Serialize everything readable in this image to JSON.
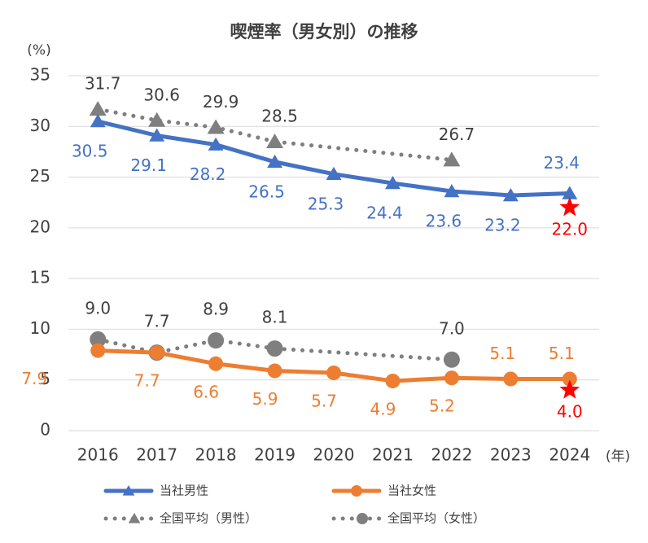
{
  "chart_data": {
    "type": "line",
    "title": "喫煙率（男女別）の推移",
    "y_unit": "(%)",
    "x_unit": "(年)",
    "categories": [
      "2016",
      "2017",
      "2018",
      "2019",
      "2020",
      "2021",
      "2022",
      "2023",
      "2024"
    ],
    "ylim": [
      0,
      35
    ],
    "yticks": [
      0,
      5,
      10,
      15,
      20,
      25,
      30,
      35
    ],
    "grid": true,
    "series": [
      {
        "name": "当社男性",
        "color": "#4472c4",
        "marker": "triangle",
        "line_style": "solid",
        "values": [
          30.5,
          29.1,
          28.2,
          26.5,
          25.3,
          24.4,
          23.6,
          23.2,
          23.4
        ]
      },
      {
        "name": "当社女性",
        "color": "#ed7d31",
        "marker": "circle",
        "line_style": "solid",
        "values": [
          7.9,
          7.7,
          6.6,
          5.9,
          5.7,
          4.9,
          5.2,
          5.1,
          5.1
        ]
      },
      {
        "name": "全国平均（男性）",
        "color": "#7f7f7f",
        "marker": "triangle",
        "line_style": "dotted",
        "connect_gaps": true,
        "values": [
          31.7,
          30.6,
          29.9,
          28.5,
          null,
          null,
          26.7,
          null,
          null
        ]
      },
      {
        "name": "全国平均（女性）",
        "color": "#7f7f7f",
        "marker": "circle",
        "line_style": "dotted",
        "connect_gaps": true,
        "values": [
          9,
          7.7,
          8.9,
          8.1,
          null,
          null,
          7,
          null,
          null
        ],
        "value_labels": [
          "9.0",
          "7.7",
          "8.9",
          "8.1",
          null,
          null,
          "7.0",
          null,
          null
        ]
      }
    ],
    "targets": [
      {
        "color": "#ff0000",
        "marker": "star",
        "category": "2024",
        "value": 22,
        "value_label": "22.0"
      },
      {
        "color": "#ff0000",
        "marker": "star",
        "category": "2024",
        "value": 4,
        "value_label": "4.0"
      }
    ]
  }
}
